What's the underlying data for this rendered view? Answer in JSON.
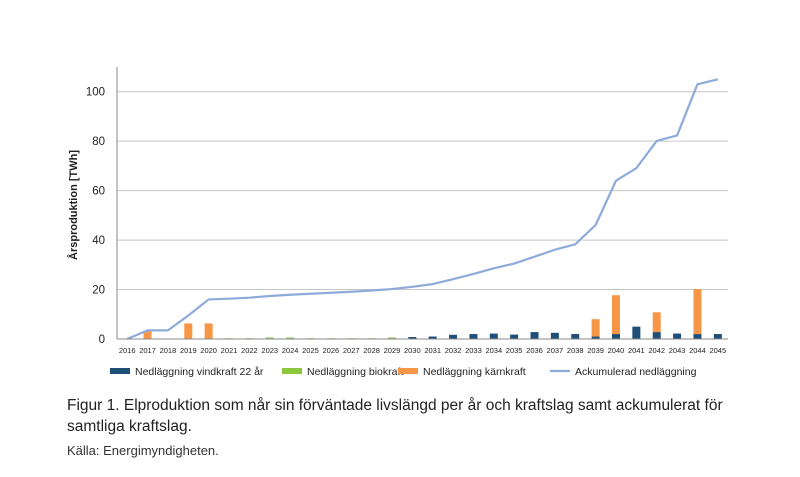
{
  "chart_data": {
    "type": "bar",
    "ylabel": "Årsproduktion [TWh]",
    "ylim": [
      0,
      110
    ],
    "yticks": [
      0,
      20,
      40,
      60,
      80,
      100
    ],
    "grid": true,
    "legend_position": "bottom",
    "categories": [
      "2016",
      "2017",
      "2018",
      "2019",
      "2020",
      "2021",
      "2022",
      "2023",
      "2024",
      "2025",
      "2026",
      "2027",
      "2028",
      "2029",
      "2030",
      "2031",
      "2032",
      "2033",
      "2034",
      "2035",
      "2036",
      "2037",
      "2038",
      "2039",
      "2040",
      "2041",
      "2042",
      "2043",
      "2044",
      "2045"
    ],
    "series": [
      {
        "name": "Nedläggning vindkraft 22 år",
        "type": "stacked-bar",
        "color": "#1f4e79",
        "values": [
          0,
          0,
          0,
          0,
          0,
          0,
          0,
          0.3,
          0.3,
          0,
          0,
          0,
          0,
          0.3,
          0.8,
          1.0,
          1.7,
          2.0,
          2.2,
          1.8,
          2.8,
          2.5,
          2.0,
          1.0,
          2.0,
          5.0,
          2.8,
          2.2,
          2.0,
          2.0
        ]
      },
      {
        "name": "Nedläggning biokraft",
        "type": "stacked-bar",
        "color": "#8dc63f",
        "values": [
          0,
          0,
          0,
          0,
          0,
          0.3,
          0.3,
          0.3,
          0.3,
          0.3,
          0.3,
          0.3,
          0.3,
          0.3,
          0,
          0,
          0,
          0,
          0,
          0,
          0,
          0,
          0,
          0,
          0,
          0,
          0,
          0,
          0,
          0
        ]
      },
      {
        "name": "Nedläggning kärnkraft",
        "type": "stacked-bar",
        "color": "#f79646",
        "values": [
          0,
          3.3,
          0,
          6.3,
          6.3,
          0,
          0,
          0,
          0,
          0,
          0,
          0,
          0,
          0,
          0,
          0,
          0,
          0,
          0,
          0,
          0,
          0,
          0,
          7.0,
          15.7,
          0,
          8.0,
          0,
          18.2,
          0
        ]
      },
      {
        "name": "Ackumulerad nedläggning",
        "type": "line",
        "color": "#8eaadb",
        "values": [
          0,
          3.5,
          3.5,
          9.5,
          16,
          16.3,
          16.7,
          17.4,
          17.9,
          18.3,
          18.7,
          19.1,
          19.6,
          20.2,
          21.1,
          22.2,
          24.2,
          26.3,
          28.6,
          30.5,
          33.3,
          36.1,
          38.3,
          46.1,
          64,
          69.1,
          80.1,
          82.3,
          103,
          105
        ]
      }
    ]
  },
  "caption": "Figur 1. Elproduktion som når sin förväntade livslängd per år och kraftslag samt ackumulerat för samtliga kraftslag.",
  "source": "Källa: Energimyndigheten."
}
